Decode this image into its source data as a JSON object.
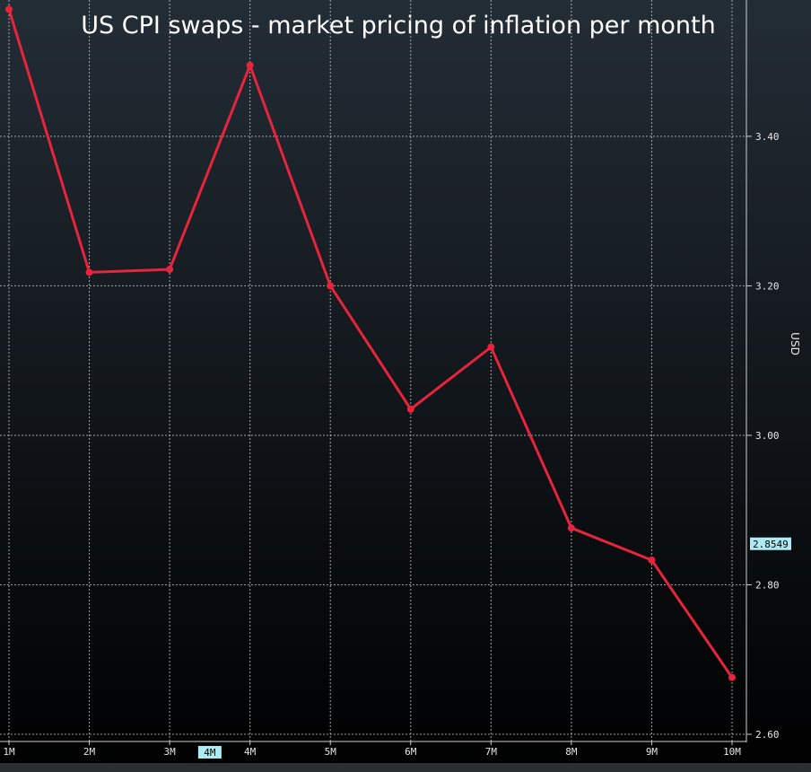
{
  "chart_data": {
    "type": "line",
    "title": "US CPI swaps - market pricing of inflation per month",
    "xlabel": "",
    "ylabel": "USD",
    "categories": [
      "1M",
      "2M",
      "3M",
      "4M",
      "5M",
      "6M",
      "7M",
      "8M",
      "9M",
      "10M"
    ],
    "series": [
      {
        "values": [
          3.57,
          3.218,
          3.222,
          3.495,
          3.2,
          3.035,
          3.118,
          2.876,
          2.833,
          2.676
        ]
      }
    ],
    "ylim": [
      2.6,
      3.58
    ],
    "yticks": [
      "2.60",
      "2.80",
      "3.00",
      "3.20",
      "3.40"
    ],
    "grid": true,
    "legend": "none",
    "highlighted_category": "4M",
    "marker_value_label": "2.8549",
    "colors": {
      "line": "#e8243c",
      "grid": "#c8c8c8",
      "marker_label_bg": "#aeeaf2",
      "background_top": "#232d36",
      "background_bottom": "#000000"
    }
  }
}
